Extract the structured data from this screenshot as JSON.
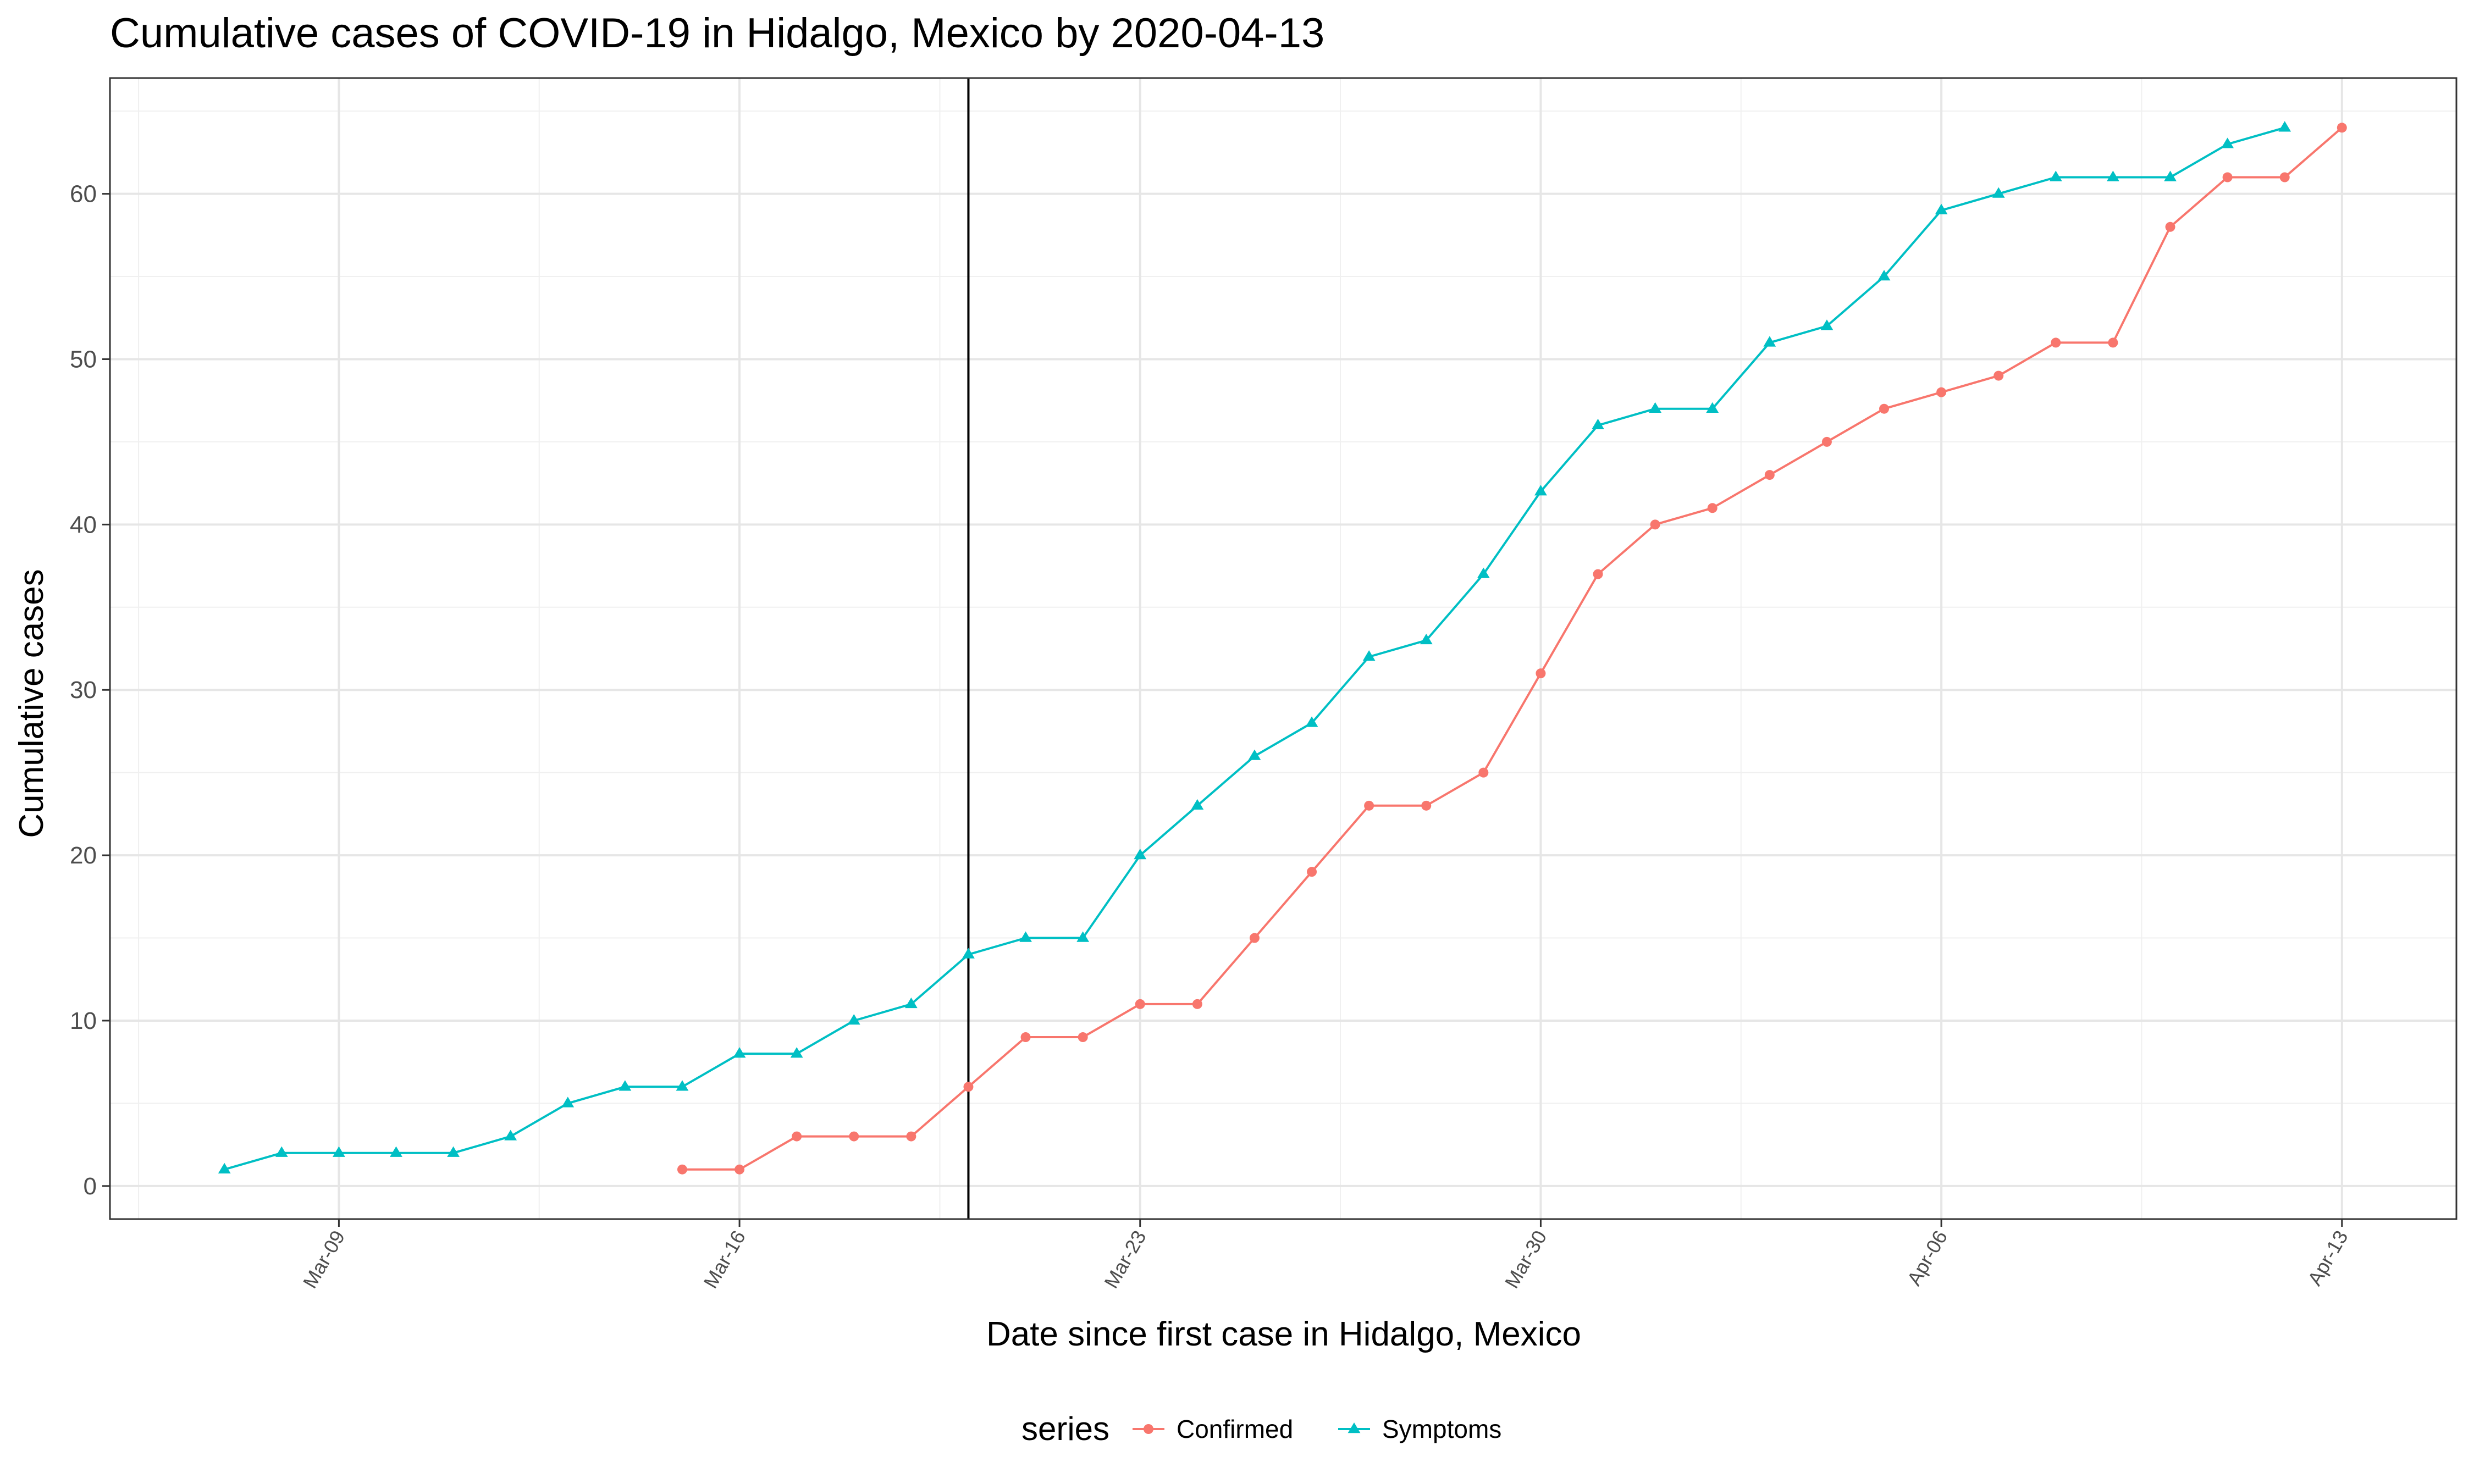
{
  "chart_data": {
    "type": "line",
    "title": "Cumulative cases of COVID-19 in Hidalgo, Mexico by 2020-04-13",
    "xlabel": "Date since first case in Hidalgo, Mexico",
    "ylabel": "Cumulative cases",
    "x_ticks": [
      {
        "date": "2020-03-09",
        "label": "Mar-09"
      },
      {
        "date": "2020-03-16",
        "label": "Mar-16"
      },
      {
        "date": "2020-03-23",
        "label": "Mar-23"
      },
      {
        "date": "2020-03-30",
        "label": "Mar-30"
      },
      {
        "date": "2020-04-06",
        "label": "Apr-06"
      },
      {
        "date": "2020-04-13",
        "label": "Apr-13"
      }
    ],
    "xlim": [
      "2020-03-05",
      "2020-04-15"
    ],
    "ylim": [
      -2,
      67
    ],
    "y_ticks": [
      0,
      10,
      20,
      30,
      40,
      50,
      60
    ],
    "vline": "2020-03-20",
    "grid": true,
    "legend": {
      "title": "series",
      "position": "bottom"
    },
    "series": [
      {
        "name": "Confirmed",
        "color": "#F8766D",
        "marker": "circle",
        "points": [
          [
            "2020-03-15",
            1
          ],
          [
            "2020-03-16",
            1
          ],
          [
            "2020-03-17",
            3
          ],
          [
            "2020-03-18",
            3
          ],
          [
            "2020-03-19",
            3
          ],
          [
            "2020-03-20",
            6
          ],
          [
            "2020-03-21",
            9
          ],
          [
            "2020-03-22",
            9
          ],
          [
            "2020-03-23",
            11
          ],
          [
            "2020-03-24",
            11
          ],
          [
            "2020-03-25",
            15
          ],
          [
            "2020-03-26",
            19
          ],
          [
            "2020-03-27",
            23
          ],
          [
            "2020-03-28",
            23
          ],
          [
            "2020-03-29",
            25
          ],
          [
            "2020-03-30",
            31
          ],
          [
            "2020-03-31",
            37
          ],
          [
            "2020-04-01",
            40
          ],
          [
            "2020-04-02",
            41
          ],
          [
            "2020-04-03",
            43
          ],
          [
            "2020-04-04",
            45
          ],
          [
            "2020-04-05",
            47
          ],
          [
            "2020-04-06",
            48
          ],
          [
            "2020-04-07",
            49
          ],
          [
            "2020-04-08",
            51
          ],
          [
            "2020-04-09",
            51
          ],
          [
            "2020-04-10",
            58
          ],
          [
            "2020-04-11",
            61
          ],
          [
            "2020-04-12",
            61
          ],
          [
            "2020-04-13",
            64
          ]
        ]
      },
      {
        "name": "Symptoms",
        "color": "#00BFC4",
        "marker": "triangle",
        "points": [
          [
            "2020-03-07",
            1
          ],
          [
            "2020-03-08",
            2
          ],
          [
            "2020-03-09",
            2
          ],
          [
            "2020-03-10",
            2
          ],
          [
            "2020-03-11",
            2
          ],
          [
            "2020-03-12",
            3
          ],
          [
            "2020-03-13",
            5
          ],
          [
            "2020-03-14",
            6
          ],
          [
            "2020-03-15",
            6
          ],
          [
            "2020-03-16",
            8
          ],
          [
            "2020-03-17",
            8
          ],
          [
            "2020-03-18",
            10
          ],
          [
            "2020-03-19",
            11
          ],
          [
            "2020-03-20",
            14
          ],
          [
            "2020-03-21",
            15
          ],
          [
            "2020-03-22",
            15
          ],
          [
            "2020-03-23",
            20
          ],
          [
            "2020-03-24",
            23
          ],
          [
            "2020-03-25",
            26
          ],
          [
            "2020-03-26",
            28
          ],
          [
            "2020-03-27",
            32
          ],
          [
            "2020-03-28",
            33
          ],
          [
            "2020-03-29",
            37
          ],
          [
            "2020-03-30",
            42
          ],
          [
            "2020-03-31",
            46
          ],
          [
            "2020-04-01",
            47
          ],
          [
            "2020-04-02",
            47
          ],
          [
            "2020-04-03",
            51
          ],
          [
            "2020-04-04",
            52
          ],
          [
            "2020-04-05",
            55
          ],
          [
            "2020-04-06",
            59
          ],
          [
            "2020-04-07",
            60
          ],
          [
            "2020-04-08",
            61
          ],
          [
            "2020-04-09",
            61
          ],
          [
            "2020-04-10",
            61
          ],
          [
            "2020-04-11",
            63
          ],
          [
            "2020-04-12",
            64
          ]
        ]
      }
    ]
  }
}
